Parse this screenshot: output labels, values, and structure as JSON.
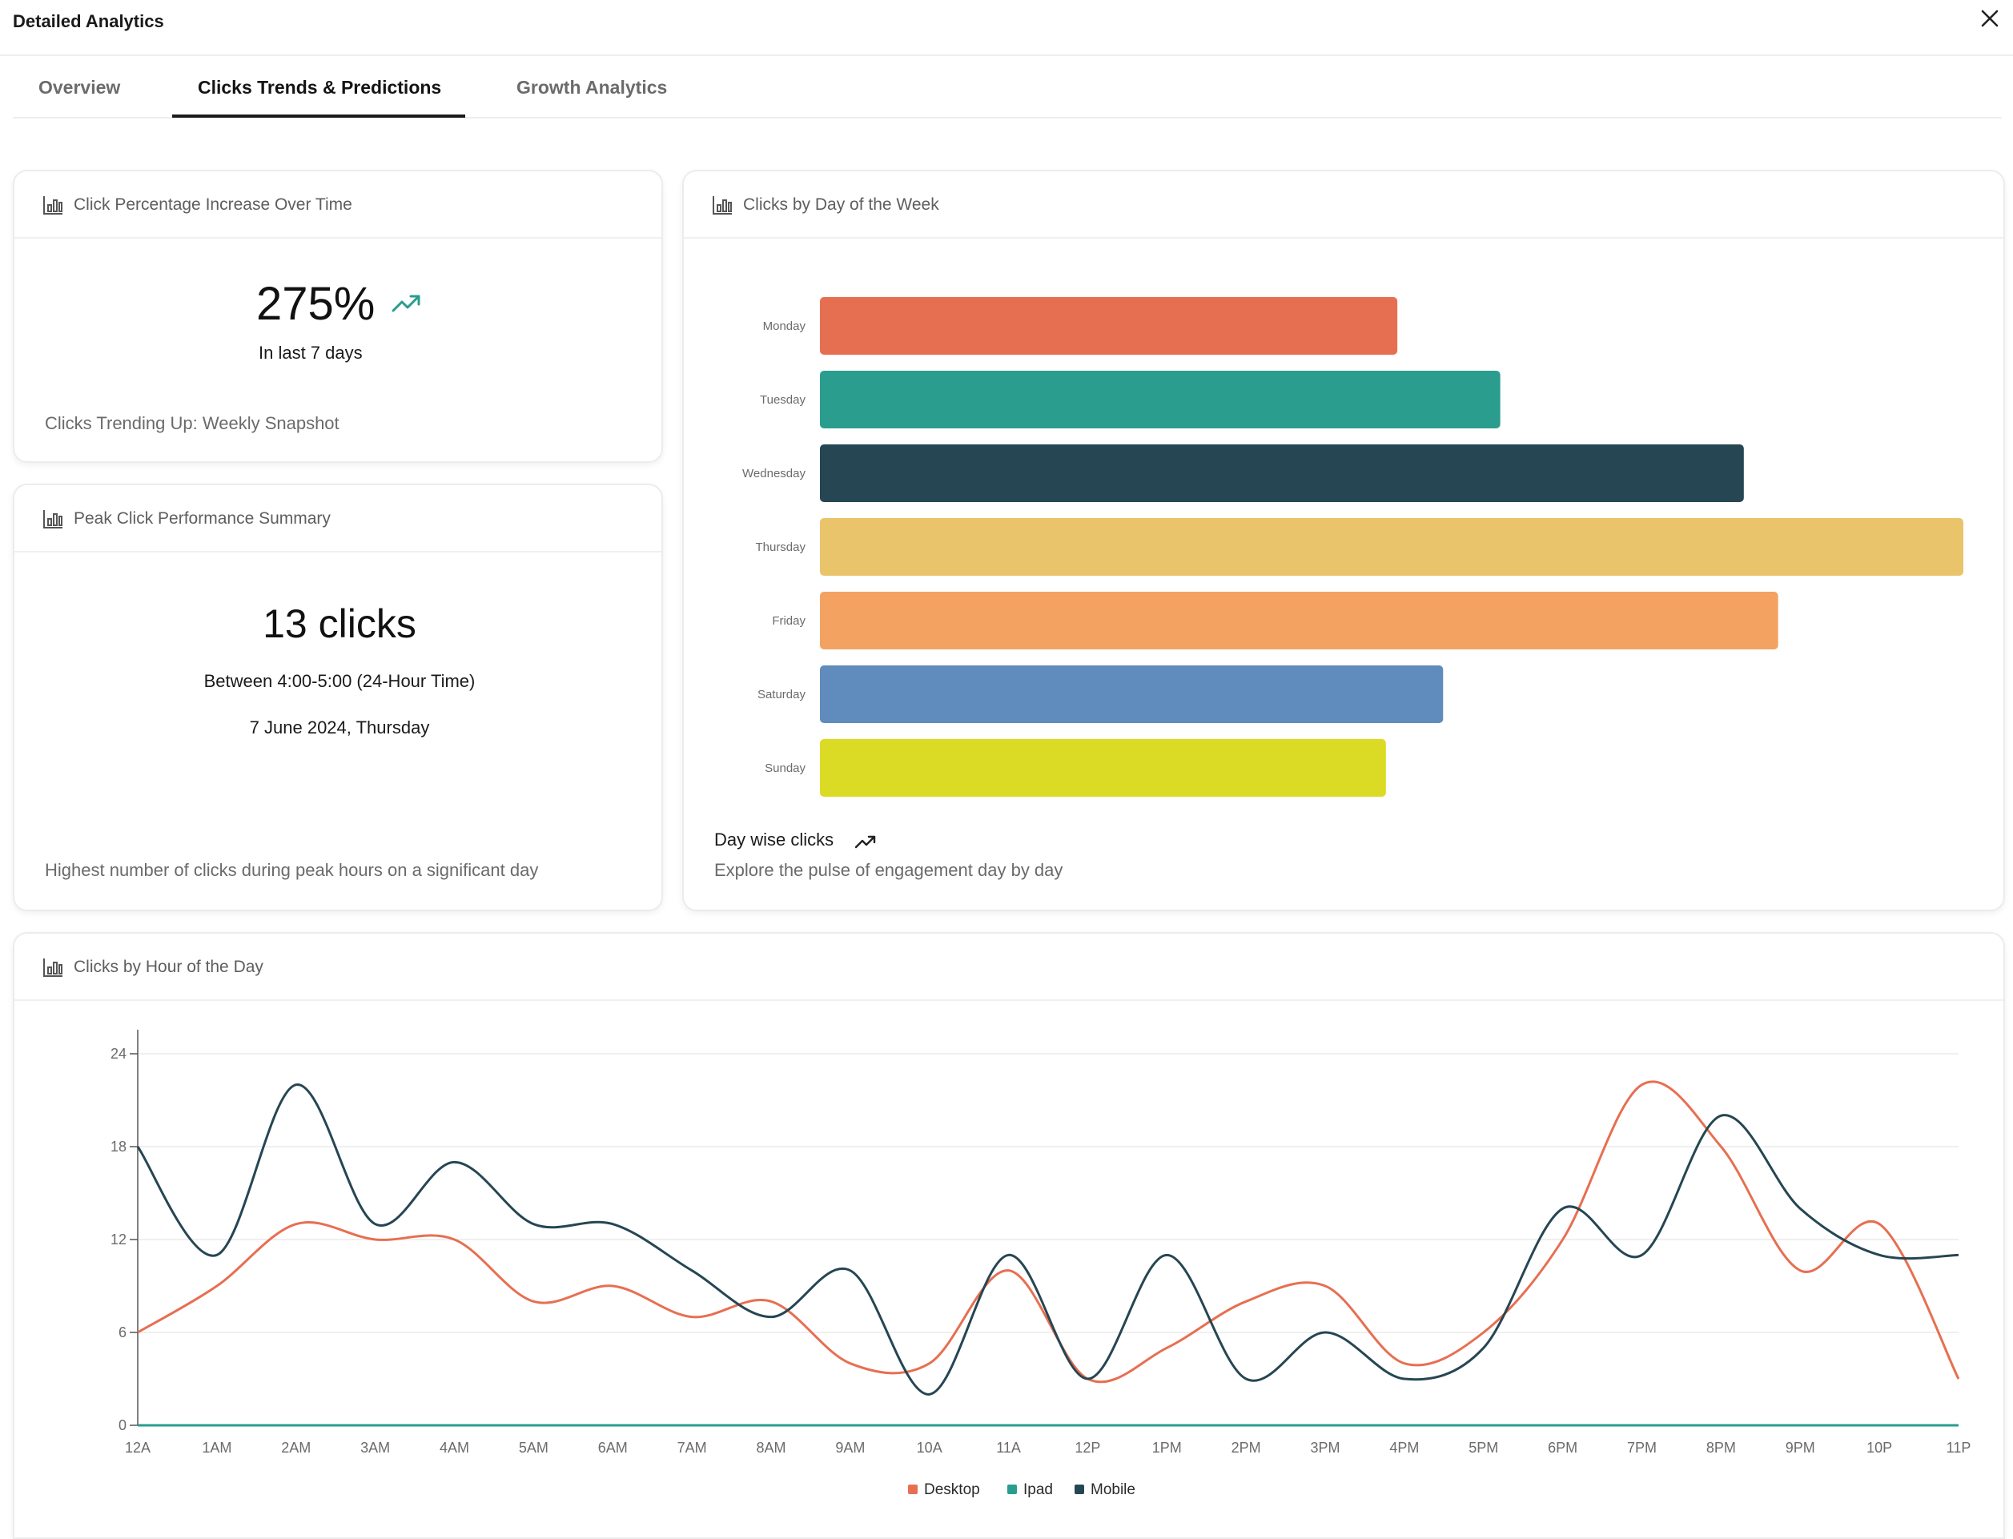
{
  "app": {
    "title": "Detailed Analytics"
  },
  "tabs": [
    {
      "label": "Overview",
      "active": false
    },
    {
      "label": "Clicks Trends & Predictions",
      "active": true
    },
    {
      "label": "Growth Analytics",
      "active": false
    }
  ],
  "icons": {
    "close": "close-icon",
    "chart": "bar-chart-icon",
    "trend": "trending-up-icon"
  },
  "colors": {
    "accent_trend": "#2a9d8f",
    "tab_active": "#1c1c1c"
  },
  "increase_card": {
    "title": "Click Percentage Increase Over Time",
    "value": "275%",
    "period": "In last 7 days",
    "footnote": "Clicks Trending Up: Weekly Snapshot"
  },
  "peak_card": {
    "title": "Peak Click Performance Summary",
    "value": "13 clicks",
    "time_range": "Between 4:00-5:00 (24-Hour Time)",
    "date": "7 June 2024, Thursday",
    "footnote": "Highest number of clicks during peak hours on a significant day"
  },
  "day_card": {
    "title": "Clicks by Day of the Week",
    "caption": "Day wise clicks",
    "subcaption": "Explore the pulse of engagement day by day"
  },
  "hour_card": {
    "title": "Clicks by Hour of the Day"
  },
  "chart_data": [
    {
      "type": "bar",
      "orientation": "horizontal",
      "categories": [
        "Monday",
        "Tuesday",
        "Wednesday",
        "Thursday",
        "Friday",
        "Saturday",
        "Sunday"
      ],
      "values": [
        50.5,
        59.5,
        80.8,
        100,
        83.8,
        54.5,
        49.5
      ],
      "colors": [
        "#e76f51",
        "#2a9d8f",
        "#264653",
        "#e9c46a",
        "#f4a261",
        "#5f8cbd",
        "#dbdb26"
      ],
      "xlim": [
        0,
        100
      ],
      "title": "",
      "xlabel": "",
      "ylabel": ""
    },
    {
      "type": "line",
      "x": [
        "12A",
        "1AM",
        "2AM",
        "3AM",
        "4AM",
        "5AM",
        "6AM",
        "7AM",
        "8AM",
        "9AM",
        "10A",
        "11A",
        "12P",
        "1PM",
        "2PM",
        "3PM",
        "4PM",
        "5PM",
        "6PM",
        "7PM",
        "8PM",
        "9PM",
        "10P",
        "11P"
      ],
      "series": [
        {
          "name": "Desktop",
          "color": "#e76f51",
          "values": [
            6,
            9,
            13,
            12,
            12,
            8,
            9,
            7,
            8,
            4,
            4,
            10,
            3,
            5,
            8,
            9,
            4,
            6,
            12,
            22,
            18,
            10,
            13,
            3
          ]
        },
        {
          "name": "Ipad",
          "color": "#2a9d8f",
          "values": [
            0,
            0,
            0,
            0,
            0,
            0,
            0,
            0,
            0,
            0,
            0,
            0,
            0,
            0,
            0,
            0,
            0,
            0,
            0,
            0,
            0,
            0,
            0,
            0
          ]
        },
        {
          "name": "Mobile",
          "color": "#264653",
          "values": [
            18,
            11,
            22,
            13,
            17,
            13,
            13,
            10,
            7,
            10,
            2,
            11,
            3,
            11,
            3,
            6,
            3,
            5,
            14,
            11,
            20,
            14,
            11,
            11
          ]
        }
      ],
      "yticks": [
        0,
        6,
        12,
        18,
        24
      ],
      "ylim": [
        0,
        24
      ],
      "grid": true,
      "legend": "bottom",
      "title": "",
      "xlabel": "",
      "ylabel": ""
    }
  ]
}
